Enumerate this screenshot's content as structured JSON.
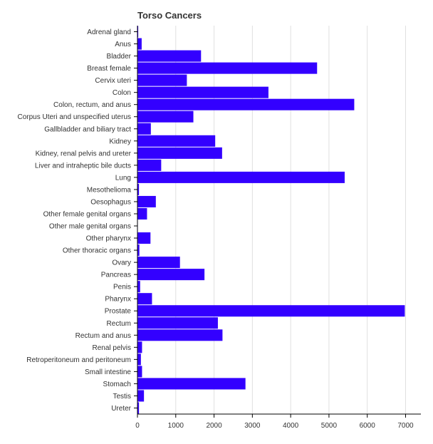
{
  "colors": {
    "bar": "#3300ff",
    "axis": "#000000",
    "grid": "#e0e0e0",
    "text": "#333333"
  },
  "chart_data": {
    "type": "bar",
    "orientation": "horizontal",
    "title": "Torso Cancers",
    "xlabel": "",
    "ylabel": "",
    "xlim": [
      0,
      7400
    ],
    "x_ticks": [
      0,
      1000,
      2000,
      3000,
      4000,
      5000,
      6000,
      7000
    ],
    "grid": true,
    "categories": [
      "Adrenal gland",
      "Anus",
      "Bladder",
      "Breast female",
      "Cervix uteri",
      "Colon",
      "Colon, rectum, and anus",
      "Corpus Uteri and unspecified uterus",
      "Gallbladder and biliary tract",
      "Kidney",
      "Kidney, renal pelvis and ureter",
      "Liver and intraheptic bile ducts",
      "Lung",
      "Mesothelioma",
      "Oesophagus",
      "Other female genital organs",
      "Other male genital organs",
      "Other pharynx",
      "Other thoracic organs",
      "Ovary",
      "Pancreas",
      "Penis",
      "Pharynx",
      "Prostate",
      "Rectum",
      "Rectum and anus",
      "Renal pelvis",
      "Retroperitoneum and peritoneum",
      "Small intestine",
      "Stomach",
      "Testis",
      "Ureter"
    ],
    "values": [
      20,
      110,
      1660,
      4690,
      1290,
      3420,
      5660,
      1460,
      350,
      2030,
      2210,
      620,
      5410,
      40,
      480,
      250,
      10,
      340,
      50,
      1110,
      1750,
      70,
      380,
      6980,
      2100,
      2220,
      120,
      90,
      120,
      2820,
      170,
      40
    ]
  }
}
